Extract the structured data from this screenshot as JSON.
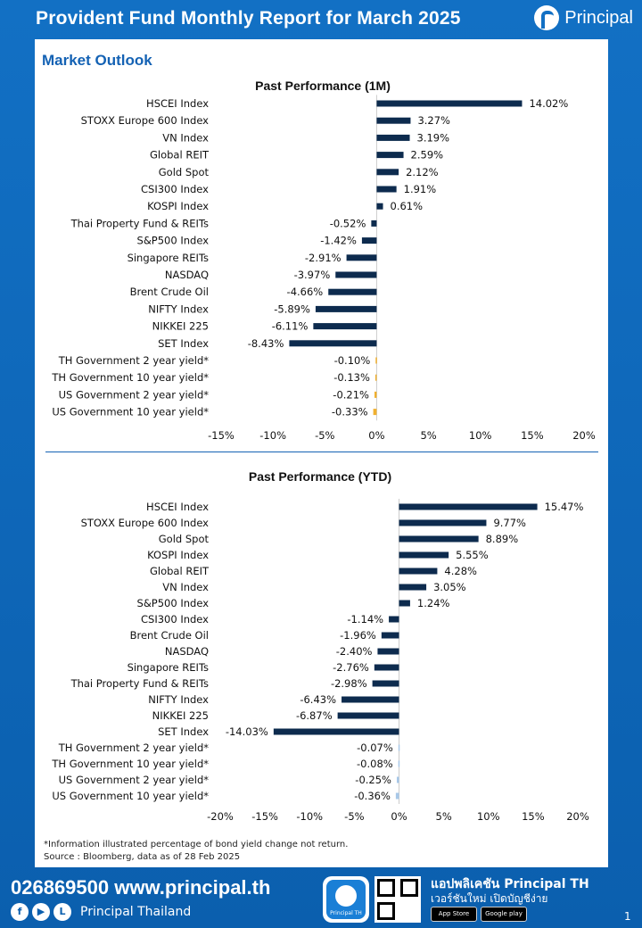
{
  "header": {
    "title": "Provident Fund Monthly Report for March 2025",
    "brand": "Principal"
  },
  "section_title": "Market Outlook",
  "colors": {
    "primary": "#1462b4",
    "bar": "#0d2b4e",
    "bond_1m": "#f0b030",
    "bond_ytd": "#a8c8e8"
  },
  "chart_data": [
    {
      "type": "bar",
      "orientation": "horizontal",
      "title": "Past Performance (1M)",
      "categories": [
        "HSCEI Index",
        "STOXX Europe 600 Index",
        "VN Index",
        "Global REIT",
        "Gold Spot",
        "CSI300 Index",
        "KOSPI Index",
        "Thai Property Fund & REITs",
        "S&P500 Index",
        "Singapore REITs",
        "NASDAQ",
        "Brent Crude Oil",
        "NIFTY Index",
        "NIKKEI 225",
        "SET Index",
        "TH Government 2 year yield*",
        "TH Government 10 year yield*",
        "US Government 2 year yield*",
        "US Government 10 year yield*"
      ],
      "values": [
        14.02,
        3.27,
        3.19,
        2.59,
        2.12,
        1.91,
        0.61,
        -0.52,
        -1.42,
        -2.91,
        -3.97,
        -4.66,
        -5.89,
        -6.11,
        -8.43,
        -0.1,
        -0.13,
        -0.21,
        -0.33
      ],
      "value_labels": [
        "14.02%",
        "3.27%",
        "3.19%",
        "2.59%",
        "2.12%",
        "1.91%",
        "0.61%",
        "-0.52%",
        "-1.42%",
        "-2.91%",
        "-3.97%",
        "-4.66%",
        "-5.89%",
        "-6.11%",
        "-8.43%",
        "-0.10%",
        "-0.13%",
        "-0.21%",
        "-0.33%"
      ],
      "highlight_last": 4,
      "xlim": [
        -15,
        20
      ],
      "xticks": [
        -15,
        -10,
        -5,
        0,
        5,
        10,
        15,
        20
      ],
      "xtick_labels": [
        "-15%",
        "-10%",
        "-5%",
        "0%",
        "5%",
        "10%",
        "15%",
        "20%"
      ],
      "grid": false
    },
    {
      "type": "bar",
      "orientation": "horizontal",
      "title": "Past Performance (YTD)",
      "categories": [
        "HSCEI Index",
        "STOXX Europe 600 Index",
        "Gold Spot",
        "KOSPI Index",
        "Global REIT",
        "VN Index",
        "S&P500 Index",
        "CSI300 Index",
        "Brent Crude Oil",
        "NASDAQ",
        "Singapore REITs",
        "Thai Property Fund & REITs",
        "NIFTY Index",
        "NIKKEI 225",
        "SET Index",
        "TH Government 2 year yield*",
        "TH Government 10 year yield*",
        "US Government 2 year yield*",
        "US Government 10 year yield*"
      ],
      "values": [
        15.47,
        9.77,
        8.89,
        5.55,
        4.28,
        3.05,
        1.24,
        -1.14,
        -1.96,
        -2.4,
        -2.76,
        -2.98,
        -6.43,
        -6.87,
        -14.03,
        -0.07,
        -0.08,
        -0.25,
        -0.36
      ],
      "value_labels": [
        "15.47%",
        "9.77%",
        "8.89%",
        "5.55%",
        "4.28%",
        "3.05%",
        "1.24%",
        "-1.14%",
        "-1.96%",
        "-2.40%",
        "-2.76%",
        "-2.98%",
        "-6.43%",
        "-6.87%",
        "-14.03%",
        "-0.07%",
        "-0.08%",
        "-0.25%",
        "-0.36%"
      ],
      "highlight_last": 4,
      "xlim": [
        -20,
        20
      ],
      "xticks": [
        -20,
        -15,
        -10,
        -5,
        0,
        5,
        10,
        15,
        20
      ],
      "xtick_labels": [
        "-20%",
        "-15%",
        "-10%",
        "-5%",
        "0%",
        "5%",
        "10%",
        "15%",
        "20%"
      ],
      "grid": false
    }
  ],
  "notes": {
    "footnote": "*Information illustrated percentage of bond yield change not return.",
    "source": "Source : Bloomberg, data as of 28 Feb 2025"
  },
  "footer": {
    "phone_web": "026869500 www.principal.th",
    "social_name": "Principal Thailand",
    "social_icons": [
      "facebook-icon",
      "youtube-icon",
      "line-icon"
    ],
    "app_logo_label": "Principal TH",
    "app_title": "แอปพลิเคชัน Principal TH",
    "app_subtitle": "เวอร์ชันใหม่ เปิดบัญชีง่าย",
    "store_app": "App Store",
    "store_google": "Google play",
    "page_number": "1"
  }
}
